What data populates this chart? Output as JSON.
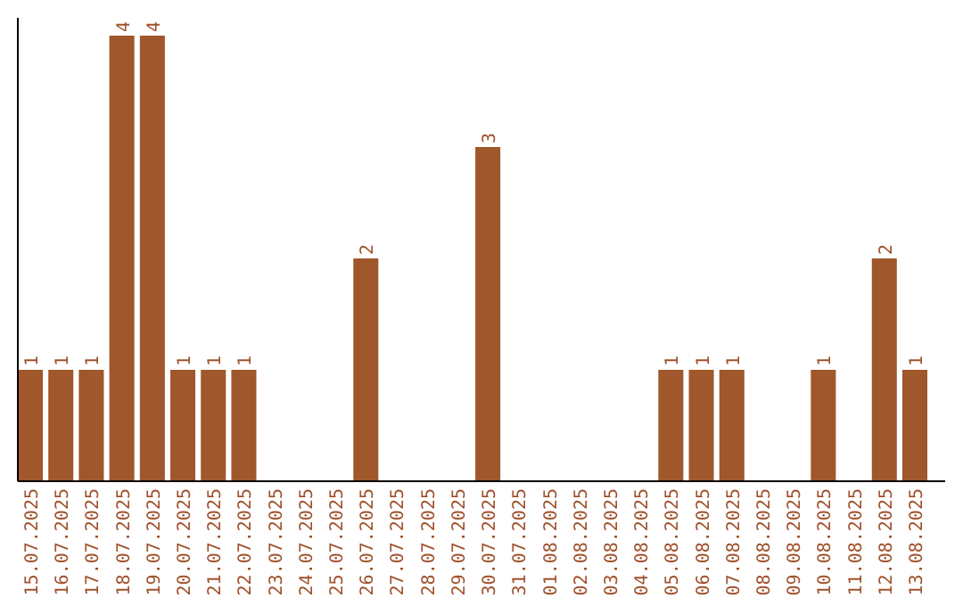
{
  "chart_data": {
    "type": "bar",
    "categories": [
      "15.07.2025",
      "16.07.2025",
      "17.07.2025",
      "18.07.2025",
      "19.07.2025",
      "20.07.2025",
      "21.07.2025",
      "22.07.2025",
      "23.07.2025",
      "24.07.2025",
      "25.07.2025",
      "26.07.2025",
      "27.07.2025",
      "28.07.2025",
      "29.07.2025",
      "30.07.2025",
      "31.07.2025",
      "01.08.2025",
      "02.08.2025",
      "03.08.2025",
      "04.08.2025",
      "05.08.2025",
      "06.08.2025",
      "07.08.2025",
      "08.08.2025",
      "09.08.2025",
      "10.08.2025",
      "11.08.2025",
      "12.08.2025",
      "13.08.2025"
    ],
    "values": [
      1,
      1,
      1,
      4,
      4,
      1,
      1,
      1,
      0,
      0,
      0,
      2,
      0,
      0,
      0,
      3,
      0,
      0,
      0,
      0,
      0,
      1,
      1,
      1,
      0,
      0,
      1,
      0,
      2,
      1
    ],
    "value_labels": [
      "1",
      "1",
      "1",
      "4",
      "4",
      "1",
      "1",
      "1",
      null,
      null,
      null,
      "2",
      null,
      null,
      null,
      "3",
      null,
      null,
      null,
      null,
      null,
      "1",
      "1",
      "1",
      null,
      null,
      "1",
      null,
      "2",
      "1"
    ],
    "color": "#a0572b",
    "ylim": [
      0,
      4.16
    ],
    "tick_labels": "x"
  }
}
